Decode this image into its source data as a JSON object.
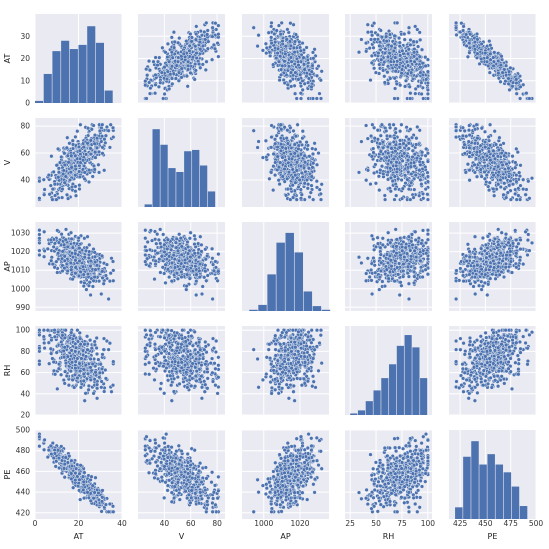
{
  "chart_data": {
    "type": "scatter",
    "variables": [
      "AT",
      "V",
      "AP",
      "RH",
      "PE"
    ],
    "axis_labels": [
      "AT",
      "V",
      "AP",
      "RH",
      "PE"
    ],
    "ranges": {
      "AT": [
        0,
        40
      ],
      "V": [
        20,
        86
      ],
      "AP": [
        988,
        1036
      ],
      "RH": [
        20,
        104
      ],
      "PE": [
        414,
        500
      ]
    },
    "ticks": {
      "AT": [
        0,
        20,
        40
      ],
      "V": [
        40,
        60,
        80
      ],
      "AP": [
        1000,
        1020
      ],
      "RH": [
        25,
        50,
        75,
        100
      ],
      "PE": [
        425,
        450,
        475,
        500
      ]
    },
    "ticks_y": {
      "AT": [
        0,
        10,
        20,
        30
      ],
      "V": [
        40,
        60,
        80
      ],
      "AP": [
        990,
        1000,
        1010,
        1020,
        1030
      ],
      "RH": [
        20,
        40,
        60,
        80,
        100
      ],
      "PE": [
        420,
        440,
        460,
        480,
        500
      ]
    },
    "histograms": {
      "AT": {
        "bins": [
          0,
          4,
          8,
          12,
          16,
          20,
          24,
          28,
          32,
          36
        ],
        "counts": [
          1,
          14,
          25,
          30,
          26,
          28,
          37,
          29,
          6,
          1
        ],
        "ymax": 40
      },
      "V": {
        "bins": [
          25,
          31,
          37,
          43,
          49,
          55,
          61,
          67,
          73,
          79
        ],
        "counts": [
          2,
          60,
          48,
          30,
          27,
          43,
          44,
          32,
          12,
          1
        ],
        "ymax": 64
      },
      "AP": {
        "bins": [
          992,
          997,
          1002,
          1007,
          1012,
          1017,
          1022,
          1027,
          1032,
          1037
        ],
        "counts": [
          1,
          5,
          30,
          56,
          64,
          48,
          16,
          4,
          1
        ],
        "ymax": 68
      },
      "RH": {
        "bins": [
          25,
          32.5,
          40,
          47.5,
          55,
          62.5,
          70,
          77.5,
          85,
          92.5,
          100
        ],
        "counts": [
          1,
          3,
          9,
          16,
          24,
          33,
          45,
          52,
          44,
          24
        ],
        "ymax": 54
      },
      "PE": {
        "bins": [
          420,
          428,
          436,
          444,
          452,
          460,
          468,
          476,
          484,
          492
        ],
        "counts": [
          9,
          48,
          60,
          42,
          50,
          42,
          36,
          25,
          10
        ],
        "ymax": 64
      }
    },
    "grid": true,
    "colors": {
      "point": "#4c72b0",
      "bar": "#4c72b0",
      "panel_bg": "#eaeaf2",
      "grid": "#ffffff",
      "point_edge": "#ffffff"
    }
  }
}
